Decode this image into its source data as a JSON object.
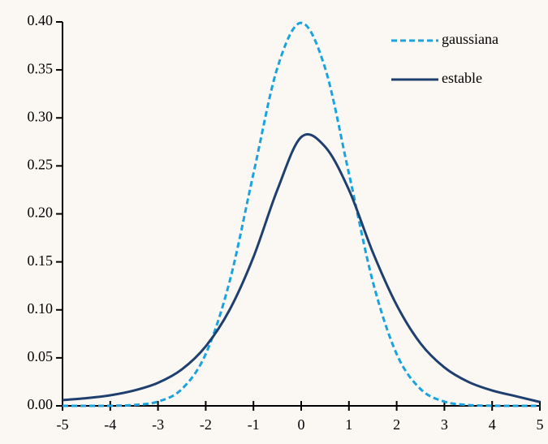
{
  "chart_data": {
    "type": "line",
    "x": [
      -5,
      -4.5,
      -4,
      -3.5,
      -3,
      -2.5,
      -2,
      -1.5,
      -1,
      -0.5,
      0,
      0.5,
      1,
      1.5,
      2,
      2.5,
      3,
      3.5,
      4,
      4.5,
      5
    ],
    "series": [
      {
        "name": "gaussiana",
        "color": "#1aa3dc",
        "dash": true,
        "values": [
          0.0,
          0.0,
          0.0001,
          0.0009,
          0.0044,
          0.0175,
          0.054,
          0.1295,
          0.242,
          0.352,
          0.399,
          0.352,
          0.242,
          0.1295,
          0.054,
          0.0175,
          0.0044,
          0.0009,
          0.0001,
          0.0,
          0.0
        ]
      },
      {
        "name": "estable",
        "color": "#1f3f6e",
        "dash": false,
        "values": [
          0.006,
          0.008,
          0.011,
          0.016,
          0.024,
          0.038,
          0.062,
          0.1,
          0.155,
          0.225,
          0.28,
          0.27,
          0.225,
          0.16,
          0.105,
          0.065,
          0.04,
          0.025,
          0.016,
          0.01,
          0.004
        ]
      }
    ],
    "xlim": [
      -5,
      5
    ],
    "xticks": [
      -5,
      -4,
      -3,
      -2,
      -1,
      0,
      1,
      2,
      3,
      4,
      5
    ],
    "ylim": [
      0,
      0.4
    ],
    "yticks": [
      {
        "value": 0,
        "label": "0.00"
      },
      0.05,
      {
        "value": 0.1,
        "label": "0.10"
      },
      0.15,
      {
        "value": 0.2,
        "label": "0.20"
      },
      0.25,
      {
        "value": 0.3,
        "label": "0.30"
      },
      0.35,
      {
        "value": 0.4,
        "label": "0.40"
      }
    ],
    "legend": "top-right"
  }
}
